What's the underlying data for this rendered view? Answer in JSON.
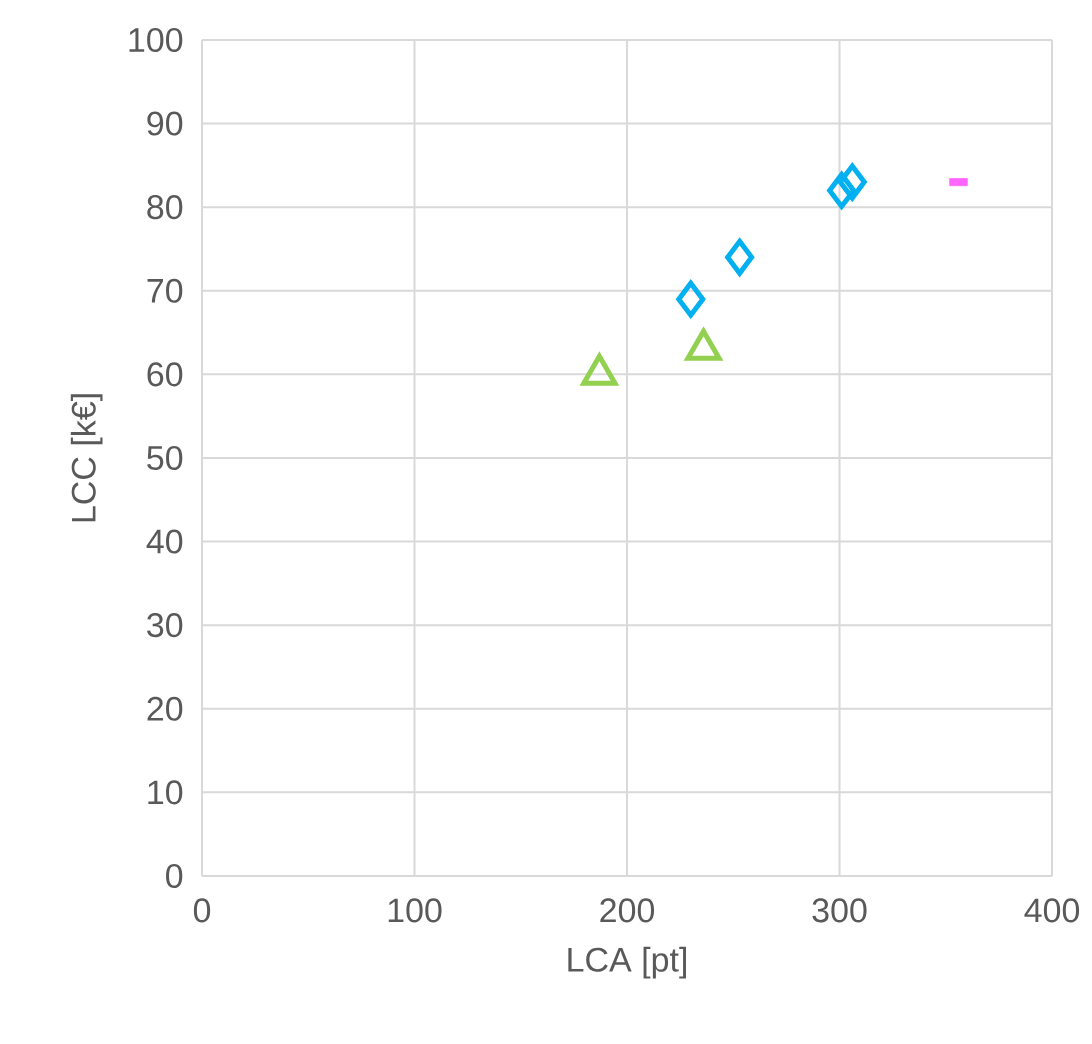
{
  "chart_data": {
    "type": "scatter",
    "xlabel": "LCA [pt]",
    "ylabel": "LCC [k€]",
    "xlim": [
      0,
      400
    ],
    "xticks": [
      0,
      100,
      200,
      300,
      400
    ],
    "ylim": [
      0,
      100
    ],
    "yticks": [
      0,
      10,
      20,
      30,
      40,
      50,
      60,
      70,
      80,
      90,
      100
    ],
    "grid": true,
    "series": [
      {
        "color": "#92d050",
        "marker": "triangle",
        "x": [
          187,
          236
        ],
        "values": [
          60,
          63
        ]
      },
      {
        "color": "#00b0f0",
        "marker": "diamond",
        "x": [
          230,
          253,
          301,
          306
        ],
        "values": [
          69,
          74,
          82,
          83
        ]
      },
      {
        "color": "#ff66ff",
        "marker": "square",
        "x": [
          356
        ],
        "values": [
          83
        ]
      }
    ]
  }
}
